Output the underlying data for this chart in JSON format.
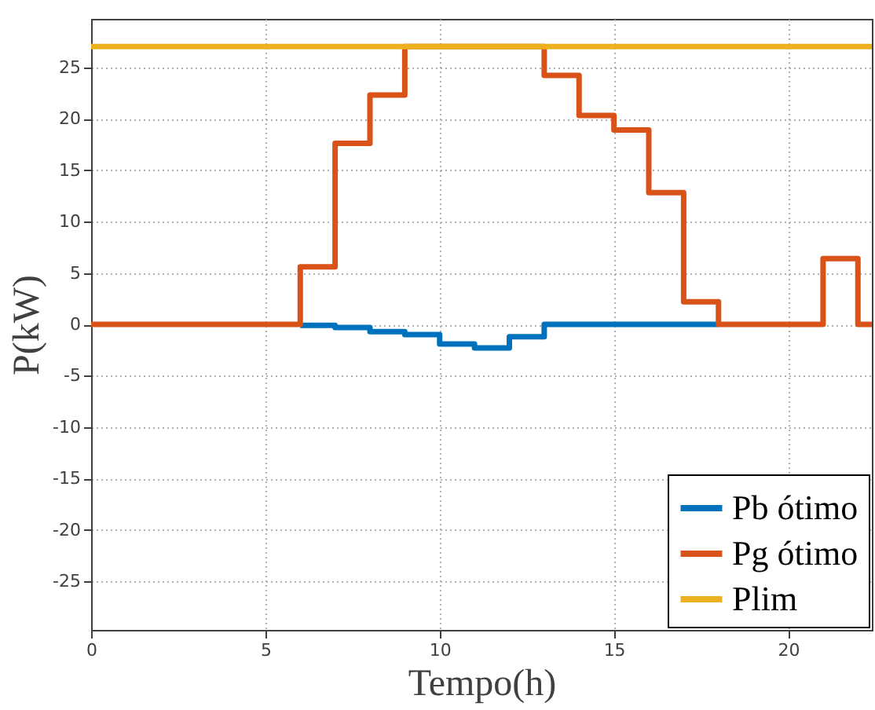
{
  "chart_data": {
    "type": "step",
    "xlabel": "Tempo(h)",
    "ylabel": "P(kW)",
    "xlim": [
      0,
      22.4
    ],
    "xticks": [
      0,
      5,
      10,
      15,
      20
    ],
    "ylim": [
      -29.7,
      29.7
    ],
    "yticks": [
      -25,
      -20,
      -15,
      -10,
      -5,
      0,
      5,
      10,
      15,
      20,
      25
    ],
    "grid": true,
    "legend": "bottom right",
    "line_style": "solid",
    "marker": "none",
    "series": [
      {
        "name": "Pb ótimo",
        "color": "#0072bd",
        "x": [
          6,
          7,
          8,
          9,
          10,
          11,
          12,
          13,
          14,
          15,
          16,
          17,
          18
        ],
        "values": [
          -0.1,
          -0.3,
          -0.7,
          -1.0,
          -1.9,
          -2.3,
          -1.2,
          0,
          0,
          0,
          0,
          0,
          0
        ]
      },
      {
        "name": "Pg ótimo",
        "color": "#d95319",
        "x": [
          0,
          1,
          2,
          3,
          4,
          5,
          6,
          7,
          8,
          9,
          10,
          11,
          12,
          13,
          14,
          15,
          16,
          17,
          18,
          19,
          20,
          21,
          22,
          22.4
        ],
        "values": [
          0,
          0,
          0,
          0,
          0,
          0,
          5.6,
          17.6,
          22.3,
          27,
          27,
          27,
          27,
          24.2,
          20.3,
          18.9,
          12.8,
          2.2,
          0,
          0,
          0,
          6.4,
          0,
          0
        ]
      },
      {
        "name": "Plim",
        "color": "#edb120",
        "x": [
          0,
          22.4
        ],
        "values": [
          27,
          27
        ]
      }
    ]
  }
}
